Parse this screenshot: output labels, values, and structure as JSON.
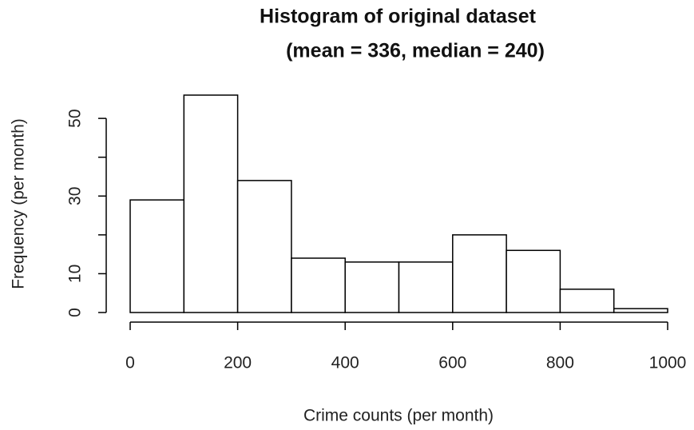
{
  "chart_data": {
    "type": "histogram",
    "title": "Histogram of original dataset",
    "subtitle": "(mean = 336, median = 240)",
    "x_label": "Crime counts (per month)",
    "y_label": "Frequency (per month)",
    "bins": [
      0,
      100,
      200,
      300,
      400,
      500,
      600,
      700,
      800,
      900,
      1000
    ],
    "values": [
      29,
      56,
      34,
      14,
      13,
      13,
      20,
      16,
      6,
      1
    ],
    "color": "#ffffff",
    "edge_color": "#000000",
    "xlim": [
      0,
      1000
    ],
    "xticks": [
      0,
      200,
      400,
      600,
      800,
      1000
    ],
    "ylim": [
      0,
      56
    ],
    "yticks": [
      0,
      10,
      30,
      50
    ],
    "yminor_ticks": [
      20,
      40
    ],
    "grid": false
  }
}
